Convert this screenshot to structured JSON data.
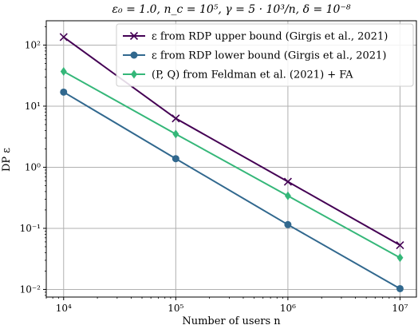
{
  "chart_data": {
    "type": "line",
    "title": "ε₀ = 1.0, n_c = 10⁵, γ = 5 · 10³/n, δ = 10⁻⁸",
    "xlabel": "Number of users n",
    "ylabel": "DP ε",
    "x_scale": "log",
    "y_scale": "log",
    "xlim": [
      7000,
      14000000
    ],
    "ylim": [
      0.0075,
      250
    ],
    "x": [
      10000,
      100000,
      1000000,
      10000000
    ],
    "x_tick_labels": [
      "10⁴",
      "10⁵",
      "10⁶",
      "10⁷"
    ],
    "x_tick_values": [
      10000,
      100000,
      1000000,
      10000000
    ],
    "y_tick_labels": [
      "10⁻²",
      "10⁻¹",
      "10⁰",
      "10¹",
      "10²"
    ],
    "y_tick_values": [
      0.01,
      0.1,
      1,
      10,
      100
    ],
    "grid": true,
    "legend_position": "top-right",
    "series": [
      {
        "name": "ε from RDP upper bound (Girgis et al., 2021)",
        "marker": "x",
        "color": "#440154",
        "values": [
          135,
          6.3,
          0.58,
          0.053
        ]
      },
      {
        "name": "ε from RDP lower bound (Girgis et al., 2021)",
        "marker": "circle",
        "color": "#31688e",
        "values": [
          17,
          1.38,
          0.115,
          0.0103
        ]
      },
      {
        "name": "(P, Q) from Feldman et al. (2021) + FA",
        "marker": "diamond",
        "color": "#35b779",
        "values": [
          37,
          3.5,
          0.34,
          0.033
        ]
      }
    ]
  }
}
